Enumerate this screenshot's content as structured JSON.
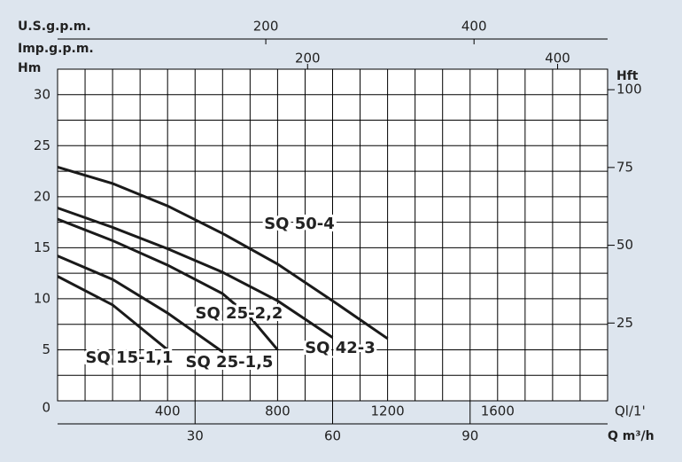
{
  "chart_data": {
    "type": "line",
    "xlabel": "Ql/1'",
    "xlim": [
      0,
      2000
    ],
    "xticks": [
      400,
      800,
      1200,
      1600
    ],
    "x_minor_ticks": [
      100,
      200,
      300,
      500,
      600,
      700,
      900,
      1000,
      1100,
      1300,
      1400,
      1500,
      1700,
      1800,
      1900
    ],
    "ylabel": "Hm",
    "ylim": [
      0,
      32.5
    ],
    "yticks": [
      0,
      5,
      10,
      15,
      20,
      25,
      30
    ],
    "y_minor_ticks": [
      2.5,
      7.5,
      12.5,
      17.5,
      22.5,
      27.5,
      32.5
    ],
    "y2label": "Hft",
    "y2lim": [
      0,
      106.6
    ],
    "y2ticks": [
      25,
      50,
      75,
      100
    ],
    "secondary_x_axes": [
      {
        "label": "Q m³/h",
        "xlim": [
          0,
          120
        ],
        "xticks": [
          30,
          60,
          90
        ]
      },
      {
        "label": "U.S.g.p.m.",
        "xlim": [
          0,
          528.3
        ],
        "xticks": [
          200,
          400
        ]
      },
      {
        "label": "Imp.g.p.m.",
        "xlim": [
          0,
          440
        ],
        "xticks": [
          200,
          400
        ]
      }
    ],
    "grid": true,
    "series": [
      {
        "name": "SQ 50-4",
        "color": "#1a1a1a",
        "x": [
          0,
          200,
          400,
          600,
          800,
          1000,
          1200
        ],
        "values": [
          22.9,
          21.3,
          19.1,
          16.4,
          13.4,
          9.8,
          6.1
        ]
      },
      {
        "name": "SQ 42-3",
        "color": "#1a1a1a",
        "x": [
          0,
          200,
          400,
          600,
          800,
          1000
        ],
        "values": [
          18.9,
          17.0,
          14.9,
          12.6,
          9.8,
          6.2
        ]
      },
      {
        "name": "SQ 25-2,2",
        "color": "#1a1a1a",
        "x": [
          0,
          200,
          400,
          600,
          700,
          800
        ],
        "values": [
          17.8,
          15.7,
          13.3,
          10.5,
          8.2,
          5.0
        ]
      },
      {
        "name": "SQ 25-1,5",
        "color": "#1a1a1a",
        "x": [
          0,
          200,
          400,
          600
        ],
        "values": [
          14.2,
          11.9,
          8.6,
          4.8
        ]
      },
      {
        "name": "SQ 15-1,1",
        "color": "#1a1a1a",
        "x": [
          0,
          200,
          400
        ],
        "values": [
          12.2,
          9.4,
          5.0
        ]
      }
    ]
  }
}
